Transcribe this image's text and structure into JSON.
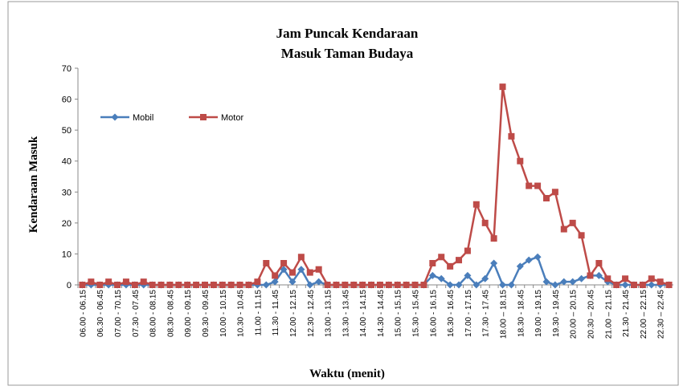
{
  "chart_data": {
    "type": "line",
    "title": [
      "Jam Puncak Kendaraan",
      "Masuk Taman Budaya"
    ],
    "x_label": "Waktu (menit)",
    "y_label": "Kendaraan Masuk",
    "categories": [
      "06.00 - 06.15",
      null,
      "06.30 - 06.45",
      null,
      "07.00 - 70.15",
      null,
      "07.30 - 07.45",
      null,
      "08.00 - 08.15",
      null,
      "08.30 - 08.45",
      null,
      "09.00 - 09.15",
      null,
      "09.30 - 09.45",
      null,
      "10.00 - 10.15",
      null,
      "10.30 - 10.45",
      null,
      "11.00 - 11.15",
      null,
      "11.30 - 11.45",
      null,
      "12.00 - 12.15",
      null,
      "12.30 - 12.45",
      null,
      "13.00 - 13.15",
      null,
      "13.30 - 13.45",
      null,
      "14.00 - 14.15",
      null,
      "14.30 - 14.45",
      null,
      "15.00 - 15.15",
      null,
      "15.30 - 15.45",
      null,
      "16.00 - 16.15",
      null,
      "16.30 - 16.45",
      null,
      "17.00 - 17.15",
      null,
      "17.30 - 17.45",
      null,
      "18.00 – 18.15",
      null,
      "18.30 - 18.45",
      null,
      "19.00 - 19.15",
      null,
      "19.30 - 19.45",
      null,
      "20.00 – 20.15",
      null,
      "20.30 – 20.45",
      null,
      "21.00 – 21.15",
      null,
      "21.30 - 21.45",
      null,
      "22.00 – 22.15",
      null,
      "22.30 – 22.45",
      null
    ],
    "series": [
      {
        "name": "Mobil",
        "color": "#4a7ebb",
        "marker": "diamond",
        "values": [
          0,
          0,
          0,
          0,
          0,
          0,
          0,
          0,
          0,
          0,
          0,
          0,
          0,
          0,
          0,
          0,
          0,
          0,
          0,
          0,
          0,
          0,
          1,
          5,
          1,
          5,
          0,
          1,
          0,
          0,
          0,
          0,
          0,
          0,
          0,
          0,
          0,
          0,
          0,
          0,
          3,
          2,
          0,
          0,
          3,
          0,
          2,
          7,
          0,
          0,
          6,
          8,
          9,
          1,
          0,
          1,
          1,
          2,
          3,
          3,
          1,
          0,
          0,
          0,
          0,
          0,
          0,
          0
        ]
      },
      {
        "name": "Motor",
        "color": "#be4b48",
        "marker": "square",
        "values": [
          0,
          1,
          0,
          1,
          0,
          1,
          0,
          1,
          0,
          0,
          0,
          0,
          0,
          0,
          0,
          0,
          0,
          0,
          0,
          0,
          1,
          7,
          3,
          7,
          4,
          9,
          4,
          5,
          0,
          0,
          0,
          0,
          0,
          0,
          0,
          0,
          0,
          0,
          0,
          0,
          7,
          9,
          6,
          8,
          11,
          26,
          20,
          15,
          64,
          48,
          40,
          32,
          32,
          28,
          30,
          18,
          20,
          16,
          3,
          7,
          2,
          0,
          2,
          0,
          0,
          2,
          1,
          0
        ]
      }
    ],
    "ylim": [
      0,
      70
    ],
    "yticks": [
      0,
      10,
      20,
      30,
      40,
      50,
      60,
      70
    ],
    "legend": "top-left"
  }
}
